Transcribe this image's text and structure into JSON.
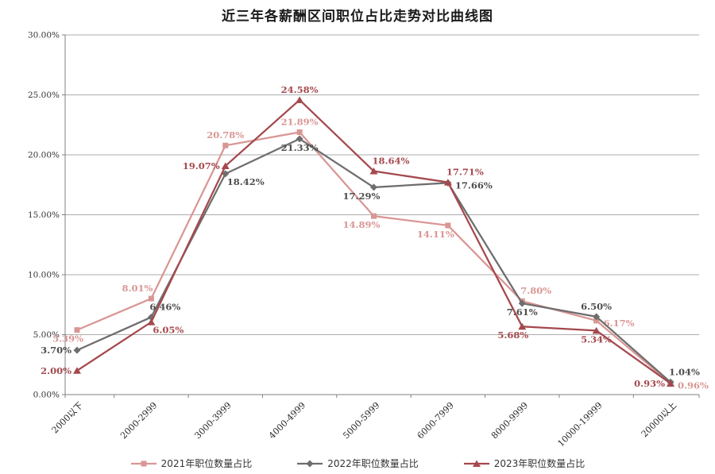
{
  "chart_data": {
    "type": "line",
    "title": "近三年各薪酬区间职位占比走势对比曲线图",
    "categories": [
      "2000以下",
      "2000-2999",
      "3000-3999",
      "4000-4999",
      "5000-5999",
      "6000-7999",
      "8000-9999",
      "10000-19999",
      "20000以上"
    ],
    "series": [
      {
        "name": "2021年职位数量占比",
        "color": "#D99694",
        "marker": "square",
        "values": [
          5.39,
          8.01,
          20.78,
          21.89,
          14.89,
          14.11,
          7.8,
          6.17,
          0.96
        ],
        "label_pos": [
          "bl",
          "al",
          "a",
          "a",
          "bl",
          "bl",
          "ar",
          "r",
          "r"
        ]
      },
      {
        "name": "2022年职位数量占比",
        "color": "#6E6E6E",
        "label_color": "#4D4D4D",
        "marker": "diamond",
        "values": [
          3.7,
          6.46,
          18.42,
          21.33,
          17.29,
          17.66,
          7.61,
          6.5,
          1.04
        ],
        "label_pos": [
          "l",
          "ar",
          "br",
          "b",
          "bl",
          "r",
          "b",
          "a",
          "ar"
        ]
      },
      {
        "name": "2023年职位数量占比",
        "color": "#A5494E",
        "marker": "triangle",
        "values": [
          2.0,
          6.05,
          19.07,
          24.58,
          18.64,
          17.71,
          5.68,
          5.34,
          0.93
        ],
        "label_pos": [
          "l",
          "br",
          "l",
          "a",
          "ar",
          "ar",
          "bl",
          "b",
          "l"
        ]
      }
    ],
    "xlabel": "",
    "ylabel": "",
    "ylim": [
      0,
      30
    ],
    "y_ticks": [
      0,
      5,
      10,
      15,
      20,
      25,
      30
    ],
    "y_tick_format": "percent-2dp",
    "grid": true,
    "legend_position": "bottom",
    "colors": {
      "grid": "#ACACAC",
      "axis": "#808080",
      "tick_text": "#333333"
    }
  }
}
